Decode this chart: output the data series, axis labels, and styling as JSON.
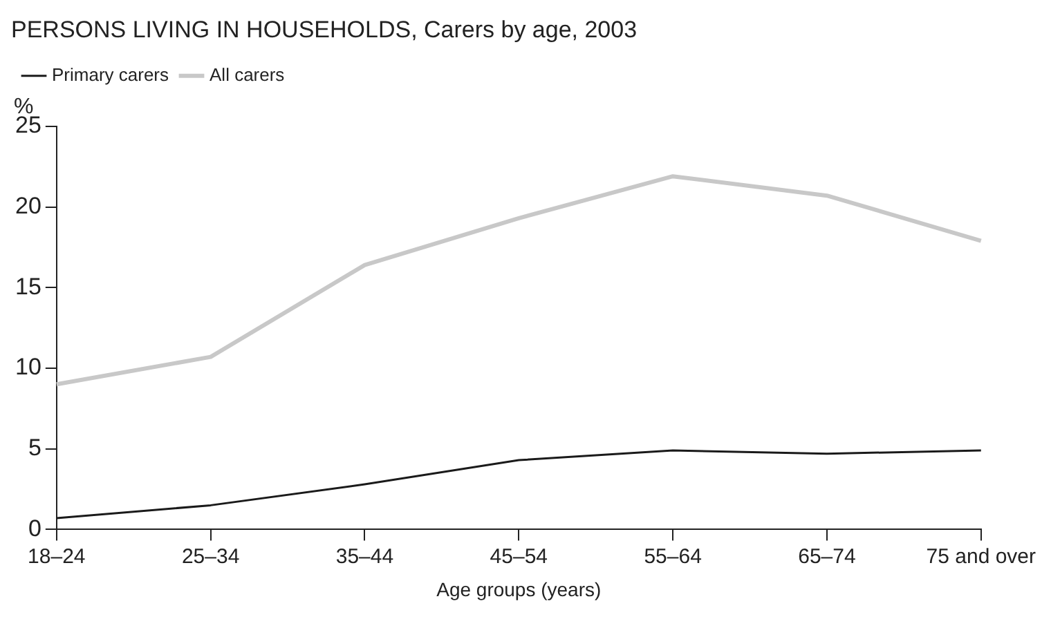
{
  "chart_data": {
    "type": "line",
    "title": "PERSONS LIVING IN HOUSEHOLDS, Carers by age, 2003",
    "xlabel": "Age groups (years)",
    "ylabel": "%",
    "categories": [
      "18–24",
      "25–34",
      "35–44",
      "45–54",
      "55–64",
      "65–74",
      "75 and over"
    ],
    "series": [
      {
        "name": "Primary carers",
        "color": "#1a1a1a",
        "values": [
          0.7,
          1.5,
          2.8,
          4.3,
          4.9,
          4.7,
          4.9
        ]
      },
      {
        "name": "All carers",
        "color": "#c8c8c8",
        "values": [
          9.0,
          10.7,
          16.4,
          19.3,
          21.9,
          20.7,
          17.9
        ]
      }
    ],
    "ylim": [
      0,
      25
    ],
    "yticks": [
      0,
      5,
      10,
      15,
      20,
      25
    ],
    "grid": false,
    "legend": "top left",
    "marker": "none",
    "line_style": "solid"
  }
}
